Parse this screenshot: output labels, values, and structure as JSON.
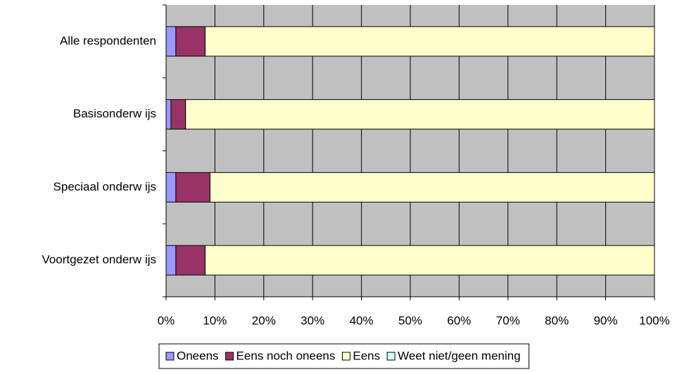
{
  "chart_data": {
    "type": "stacked_barh",
    "categories": [
      "Alle respondenten",
      "Basisonderw ijs",
      "Speciaal onderw ijs",
      "Voortgezet onderw ijs"
    ],
    "series": [
      {
        "name": "Oneens",
        "color": "#9999ff",
        "values": [
          2,
          1,
          2,
          2
        ]
      },
      {
        "name": "Eens noch oneens",
        "color": "#993366",
        "values": [
          6,
          3,
          7,
          6
        ]
      },
      {
        "name": "Eens",
        "color": "#ffffcc",
        "values": [
          92,
          96,
          91,
          92
        ]
      },
      {
        "name": "Weet niet/geen mening",
        "color": "#ccffff",
        "values": [
          0,
          0,
          0,
          0
        ]
      }
    ],
    "xlim": [
      0,
      100
    ],
    "xticks": [
      {
        "value": 0,
        "label": "0%"
      },
      {
        "value": 10,
        "label": "10%"
      },
      {
        "value": 20,
        "label": "20%"
      },
      {
        "value": 30,
        "label": "30%"
      },
      {
        "value": 40,
        "label": "40%"
      },
      {
        "value": 50,
        "label": "50%"
      },
      {
        "value": 60,
        "label": "60%"
      },
      {
        "value": 70,
        "label": "70%"
      },
      {
        "value": 80,
        "label": "80%"
      },
      {
        "value": 90,
        "label": "90%"
      },
      {
        "value": 100,
        "label": "100%"
      }
    ],
    "grid": true,
    "legend": "bottom"
  }
}
